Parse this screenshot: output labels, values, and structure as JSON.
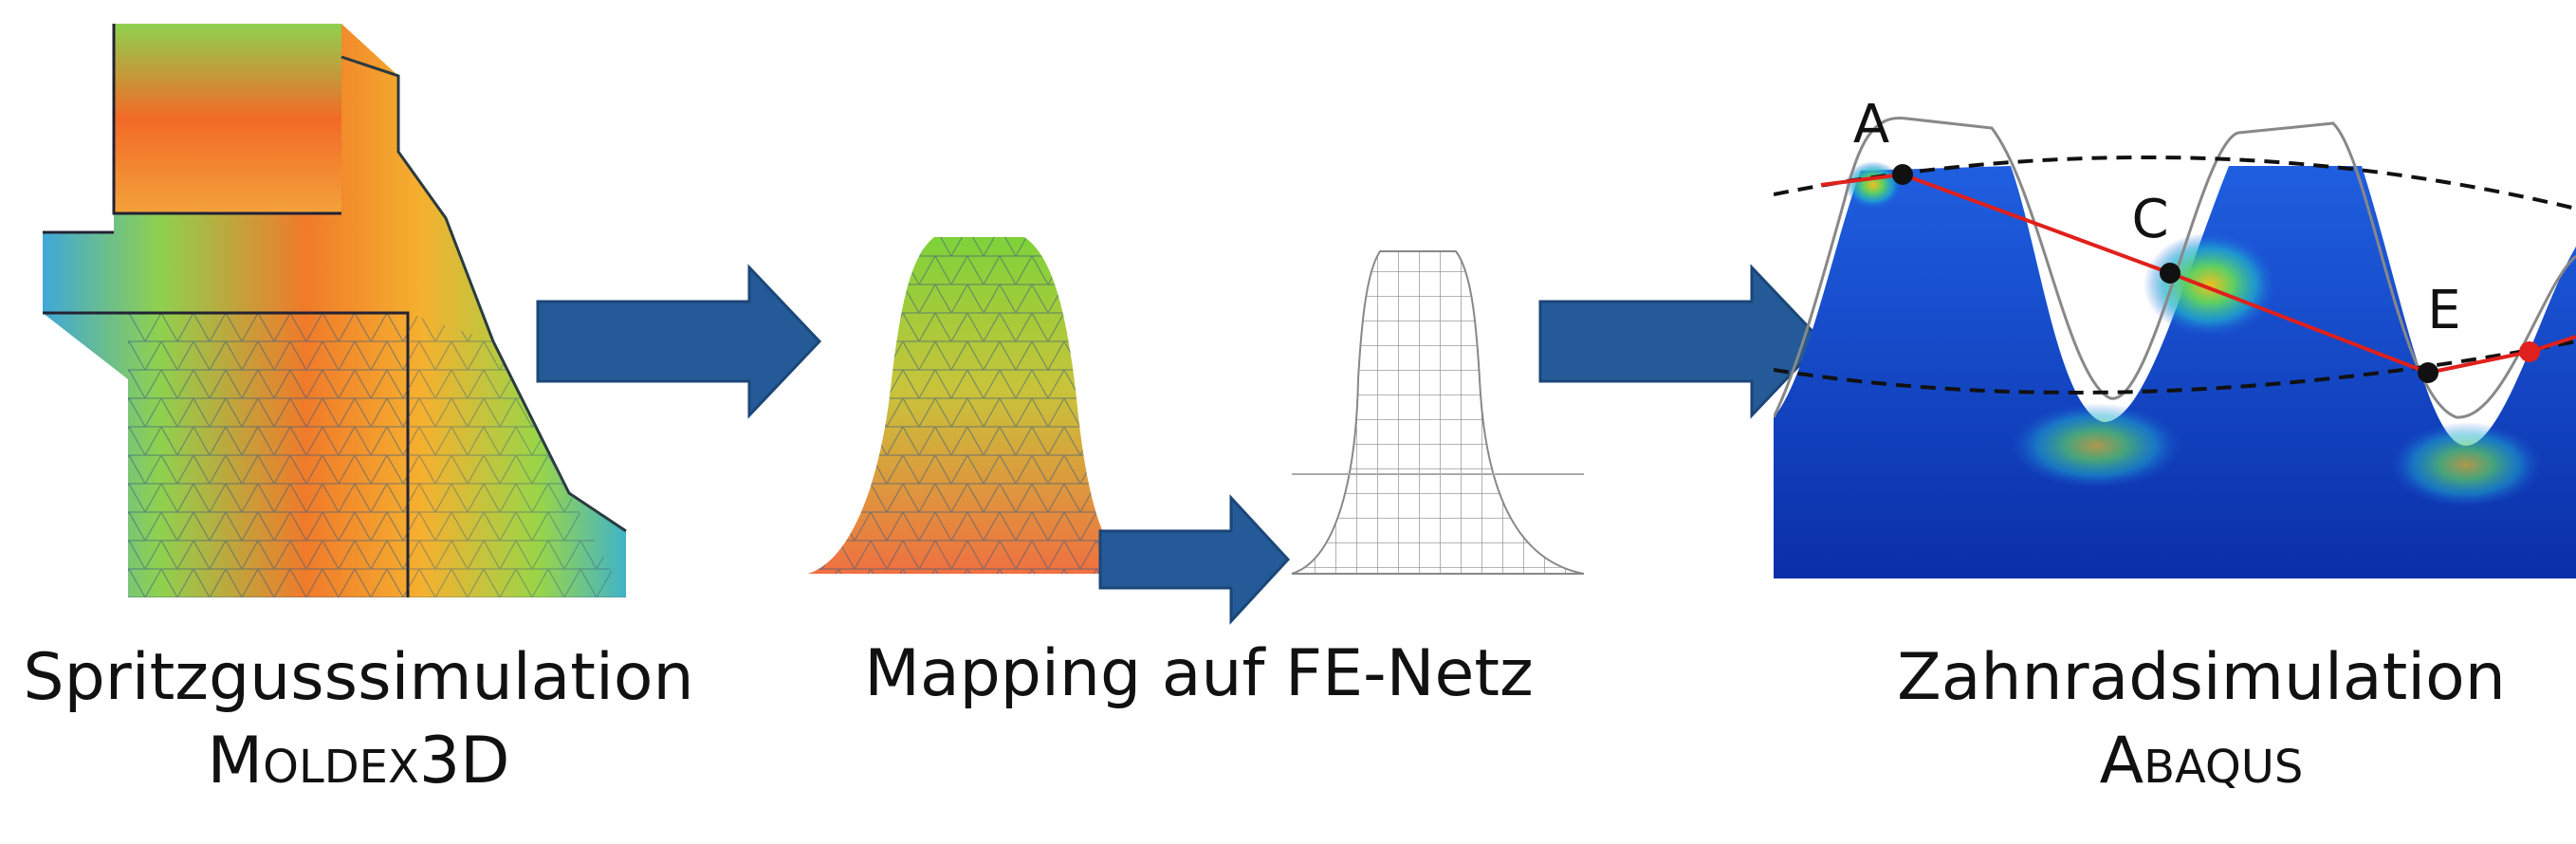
{
  "steps": [
    {
      "title": "Spritzgusssimulation",
      "software": "Moldex3D"
    },
    {
      "title": "Mapping auf FE-Netz"
    },
    {
      "title": "Zahnradsimulation",
      "software": "Abaqus"
    }
  ],
  "points": [
    "A",
    "C",
    "E"
  ]
}
